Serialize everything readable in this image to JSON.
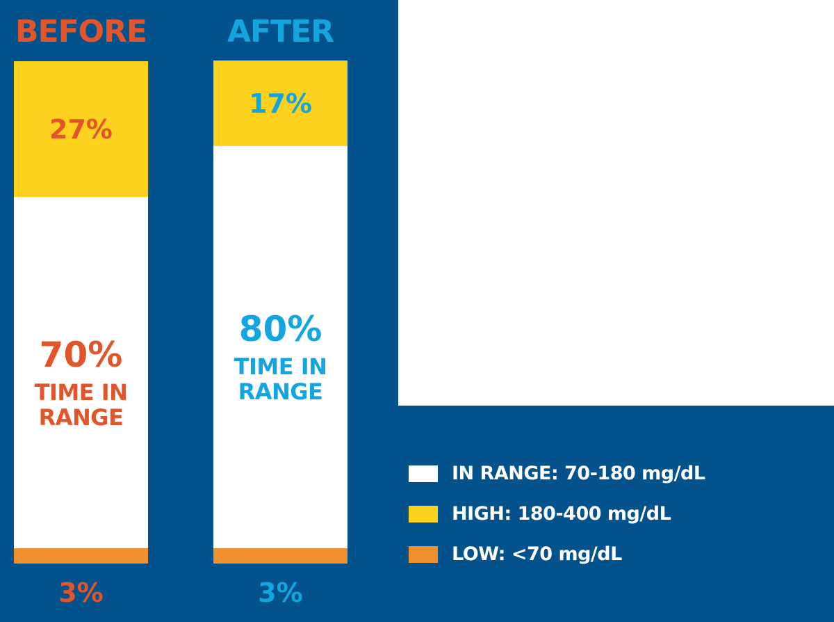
{
  "colors": {
    "background": "#04528b",
    "in_range": "#ffffff",
    "high": "#fcd21f",
    "low": "#ef8f2d",
    "before_text": "#e2542a",
    "after_text": "#12a5df",
    "legend_text": "#ffffff"
  },
  "chart_data": {
    "type": "bar",
    "stacked": true,
    "categories": [
      "BEFORE",
      "AFTER"
    ],
    "series": [
      {
        "name": "LOW: <70 mg/dL",
        "values": [
          3,
          3
        ],
        "labels": [
          "3%",
          "3%"
        ]
      },
      {
        "name": "IN RANGE: 70-180 mg/dL",
        "values": [
          70,
          80
        ],
        "labels": [
          "70%",
          "80%"
        ]
      },
      {
        "name": "HIGH: 180-400 mg/dL",
        "values": [
          27,
          17
        ],
        "labels": [
          "27%",
          "17%"
        ]
      }
    ],
    "in_range_caption_line1": "TIME IN",
    "in_range_caption_line2": "RANGE",
    "ylim": [
      0,
      100
    ],
    "legend_position": "bottom-right"
  },
  "legend": {
    "items": [
      {
        "label": "IN RANGE: 70-180 mg/dL",
        "color_key": "in_range"
      },
      {
        "label": "HIGH: 180-400 mg/dL",
        "color_key": "high"
      },
      {
        "label": "LOW: <70 mg/dL",
        "color_key": "low"
      }
    ]
  }
}
